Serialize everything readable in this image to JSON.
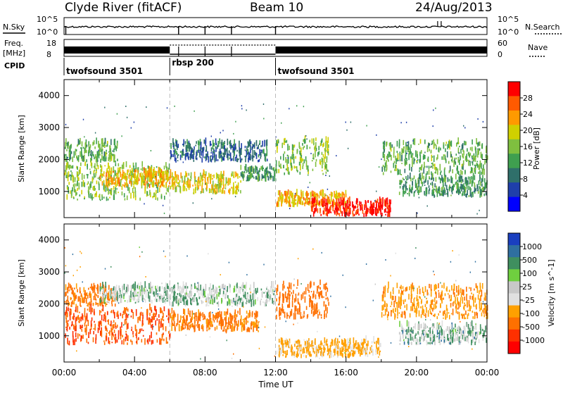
{
  "header": {
    "station": "Clyde River (fitACF)",
    "beam": "Beam 10",
    "date": "24/Aug/2013"
  },
  "sky_panel": {
    "left_label": "N.Sky",
    "left_ticks": [
      "10^5",
      "10^0"
    ],
    "right_label": "N.Search",
    "right_ticks": [
      "10^5",
      "10^0"
    ]
  },
  "freq_panel": {
    "left_label_line1": "Freq.",
    "left_label_line2": "[MHz]",
    "left_ticks": [
      "18",
      "8"
    ],
    "right_label": "Nave",
    "right_ticks": [
      "60",
      "0"
    ]
  },
  "cpid": {
    "label": "CPID",
    "segments": [
      {
        "name": "twofsound 3501",
        "start_hour": 0,
        "end_hour": 6
      },
      {
        "name": "rbsp 200",
        "start_hour": 6,
        "end_hour": 12
      },
      {
        "name": "twofsound 3501",
        "start_hour": 12,
        "end_hour": 24
      }
    ]
  },
  "colors": {
    "power_scale": [
      "#0000ff",
      "#1f3faa",
      "#2f6f6a",
      "#3f9f4f",
      "#7fbf3f",
      "#d0d000",
      "#ff9a00",
      "#ff5a00",
      "#ff0000"
    ],
    "velocity_scale": [
      "#1a3fbf",
      "#2f6fa0",
      "#3f8f5f",
      "#6fcf3f",
      "#c8c8c8",
      "#e0e0e0",
      "#ffa000",
      "#ff7000",
      "#ff3000",
      "#ff0000"
    ]
  },
  "chart_data": [
    {
      "type": "heatmap",
      "name": "power",
      "xlabel": "",
      "ylabel": "Slant Range [km]",
      "xlim": [
        0,
        24
      ],
      "ylim": [
        180,
        4500
      ],
      "yticks": [
        "1000",
        "2000",
        "3000",
        "4000"
      ],
      "colorbar": {
        "label": "Power [dB]",
        "ticks": [
          "4",
          "8",
          "12",
          "16",
          "20",
          "24",
          "28"
        ],
        "range": [
          0,
          32
        ]
      },
      "regions": [
        {
          "t0": 0.0,
          "t1": 6.0,
          "r0": 700,
          "r1": 1800,
          "value": 16
        },
        {
          "t0": 0.0,
          "t1": 3.0,
          "r0": 1900,
          "r1": 2500,
          "value": 14
        },
        {
          "t0": 2.0,
          "t1": 6.0,
          "r0": 1100,
          "r1": 1600,
          "value": 22
        },
        {
          "t0": 6.0,
          "t1": 11.5,
          "r0": 1900,
          "r1": 2500,
          "value": 8
        },
        {
          "t0": 6.0,
          "t1": 10.0,
          "r0": 900,
          "r1": 1500,
          "value": 20
        },
        {
          "t0": 10.0,
          "t1": 12.0,
          "r0": 1300,
          "r1": 1700,
          "value": 12
        },
        {
          "t0": 12.0,
          "t1": 15.0,
          "r0": 1500,
          "r1": 2600,
          "value": 16
        },
        {
          "t0": 12.0,
          "t1": 16.0,
          "r0": 500,
          "r1": 900,
          "value": 22
        },
        {
          "t0": 14.0,
          "t1": 18.5,
          "r0": 200,
          "r1": 650,
          "value": 30
        },
        {
          "t0": 18.0,
          "t1": 24.0,
          "r0": 1500,
          "r1": 2500,
          "value": 14
        },
        {
          "t0": 19.0,
          "t1": 24.0,
          "r0": 800,
          "r1": 1400,
          "value": 12
        }
      ]
    },
    {
      "type": "heatmap",
      "name": "velocity",
      "xlabel": "Time UT",
      "ylabel": "Slant Range [km]",
      "xlim": [
        0,
        24
      ],
      "ylim": [
        180,
        4500
      ],
      "xticks": [
        "00:00",
        "04:00",
        "08:00",
        "12:00",
        "16:00",
        "20:00",
        "00:00"
      ],
      "yticks": [
        "1000",
        "2000",
        "3000",
        "4000"
      ],
      "colorbar": {
        "label": "Velocity [m s^-1]",
        "ticks": [
          "1000",
          "500",
          "100",
          "25",
          "-25",
          "-100",
          "-500",
          "-1000"
        ],
        "range": [
          1000,
          -1000
        ]
      },
      "regions": [
        {
          "t0": 0.0,
          "t1": 3.0,
          "r0": 1900,
          "r1": 2500,
          "value": -300
        },
        {
          "t0": 2.0,
          "t1": 6.0,
          "r0": 2000,
          "r1": 2500,
          "value": 0
        },
        {
          "t0": 0.0,
          "t1": 6.0,
          "r0": 700,
          "r1": 1800,
          "value": -500
        },
        {
          "t0": 6.0,
          "t1": 11.0,
          "r0": 1100,
          "r1": 1700,
          "value": -300
        },
        {
          "t0": 6.0,
          "t1": 12.0,
          "r0": 1900,
          "r1": 2500,
          "value": 0
        },
        {
          "t0": 12.0,
          "t1": 15.0,
          "r0": 1500,
          "r1": 2600,
          "value": -400
        },
        {
          "t0": 12.0,
          "t1": 18.0,
          "r0": 300,
          "r1": 800,
          "value": -150
        },
        {
          "t0": 18.0,
          "t1": 24.0,
          "r0": 1500,
          "r1": 2500,
          "value": -200
        },
        {
          "t0": 19.0,
          "t1": 24.0,
          "r0": 700,
          "r1": 1300,
          "value": 10
        }
      ]
    }
  ]
}
